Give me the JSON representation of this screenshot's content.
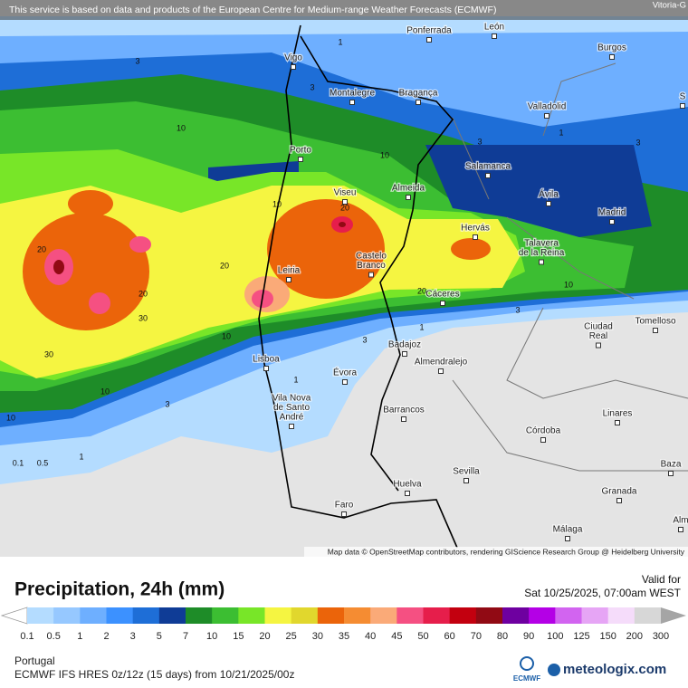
{
  "header": {
    "notice": "This service is based on data and products of the European Centre for Medium-range Weather Forecasts (ECMWF)",
    "corner": "Vitoria-G"
  },
  "cities": [
    [
      "Ponferrada"
    ],
    [
      "León"
    ],
    [
      "Vigo"
    ],
    [
      "Burgos"
    ],
    [
      "Montalegre"
    ],
    [
      "Bragança"
    ],
    [
      "Valladolid"
    ],
    [
      "Porto"
    ],
    [
      "Salamanca"
    ],
    [
      "Viseu"
    ],
    [
      "Almeida"
    ],
    [
      "Ávila"
    ],
    [
      "Madrid"
    ],
    [
      "Hervás"
    ],
    [
      "Talavera",
      "de la Reina"
    ],
    [
      "Castelo",
      "Branco"
    ],
    [
      "Leiria"
    ],
    [
      "Cáceres"
    ],
    [
      "Ciudad",
      "Real"
    ],
    [
      "Tomelloso"
    ],
    [
      "Badajoz"
    ],
    [
      "Almendralejo"
    ],
    [
      "Lisboa"
    ],
    [
      "Évora"
    ],
    [
      "Vila Nova",
      "de Santo",
      "André"
    ],
    [
      "Barrancos"
    ],
    [
      "Linares"
    ],
    [
      "Córdoba"
    ],
    [
      "Sevilla"
    ],
    [
      "Baza"
    ],
    [
      "Huelva"
    ],
    [
      "Granada"
    ],
    [
      "Faro"
    ],
    [
      "Málaga"
    ],
    [
      "Alm"
    ],
    [
      "S"
    ]
  ],
  "contour_labels": [
    1,
    3,
    3,
    1,
    3,
    3,
    10,
    10,
    10,
    20,
    20,
    20,
    20,
    30,
    20,
    1,
    3,
    10,
    10,
    3,
    30,
    10,
    3,
    10,
    1,
    0.5,
    0.1,
    1
  ],
  "attribution": "Map data © OpenStreetMap contributors, rendering GIScience Research Group @ Heidelberg University",
  "legend": {
    "title": "Precipitation, 24h (mm)",
    "valid_label": "Valid for",
    "valid_time": "Sat 10/25/2025, 07:00am WEST",
    "ticks": [
      0.1,
      0.5,
      1,
      2,
      3,
      5,
      7,
      10,
      15,
      20,
      25,
      30,
      35,
      40,
      45,
      50,
      60,
      70,
      80,
      90,
      100,
      125,
      150,
      200,
      300
    ],
    "colors": [
      "#ffffff",
      "#b4dcff",
      "#96c8ff",
      "#6eafff",
      "#3c91ff",
      "#1e6ed7",
      "#0f3c96",
      "#1e8c28",
      "#3cbe32",
      "#78e628",
      "#f5f541",
      "#e1d72d",
      "#eb640a",
      "#f58c32",
      "#faaa78",
      "#f55082",
      "#e61e4b",
      "#c3000f",
      "#910a14",
      "#6e00a0",
      "#b400e6",
      "#d264f0",
      "#e6a5f5",
      "#f5dcfa",
      "#d7d7d7",
      "#a5a5a5"
    ]
  },
  "footer": {
    "region": "Portugal",
    "model": "ECMWF IFS HRES 0z/12z (15 days) from 10/21/2025/00z",
    "ecmwf": "ECMWF",
    "brand": "meteologix.com"
  }
}
